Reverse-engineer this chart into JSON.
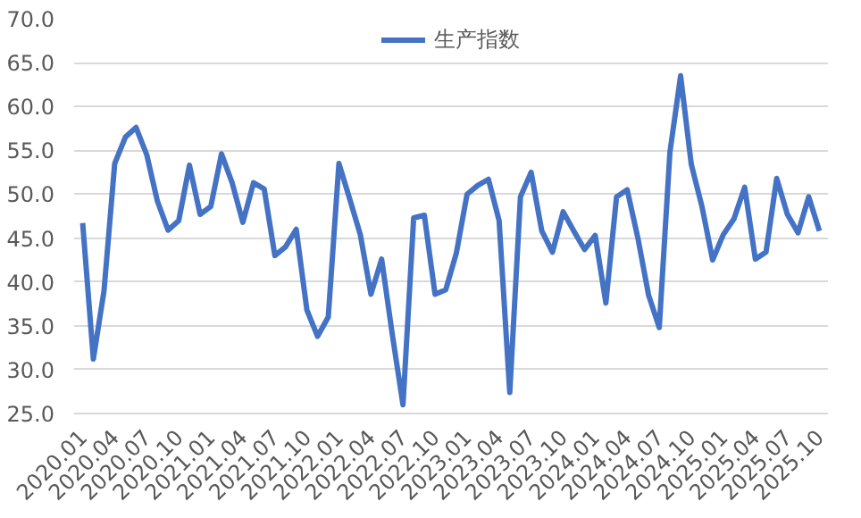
{
  "chart_data": {
    "type": "line",
    "categories": [
      "2020.01",
      null,
      null,
      "2020.04",
      null,
      null,
      "2020.07",
      null,
      null,
      "2020.10",
      null,
      null,
      "2021.01",
      null,
      null,
      "2021.04",
      null,
      null,
      "2021.07",
      null,
      null,
      "2021.10",
      null,
      null,
      "2022.01",
      null,
      null,
      "2022.04",
      null,
      null,
      "2022.07",
      null,
      null,
      "2022.10",
      null,
      null,
      "2023.01",
      null,
      null,
      "2023.04",
      null,
      null,
      "2023.07",
      null,
      null,
      "2023.10",
      null,
      null,
      "2024.01",
      null,
      null,
      "2024.04",
      null,
      null,
      "2024.07",
      null,
      null,
      "2024.10",
      null,
      null,
      "2025.01",
      null,
      null,
      "2025.04",
      null,
      null,
      "2025.07",
      null,
      null,
      "2025.10"
    ],
    "series": [
      {
        "name": "生产指数",
        "color": "#4472c4",
        "values": [
          46.7,
          31.2,
          39.0,
          53.5,
          56.5,
          57.6,
          54.5,
          49.2,
          45.9,
          47.0,
          53.3,
          47.7,
          48.6,
          54.6,
          51.3,
          46.8,
          51.3,
          50.6,
          43.0,
          44.0,
          46.0,
          36.8,
          33.8,
          36.0,
          53.5,
          49.5,
          45.4,
          38.6,
          42.6,
          34.0,
          26.0,
          47.3,
          47.6,
          38.6,
          39.1,
          43.3,
          50.0,
          51.0,
          51.7,
          47.0,
          27.4,
          49.7,
          52.5,
          45.8,
          43.4,
          48.0,
          45.8,
          43.7,
          45.3,
          37.6,
          49.7,
          50.5,
          45.0,
          38.5,
          34.8,
          54.8,
          63.5,
          53.4,
          48.6,
          42.5,
          45.4,
          47.2,
          50.8,
          42.6,
          43.4,
          51.8,
          47.7,
          45.6,
          49.7,
          45.8
        ]
      }
    ],
    "ylim": [
      25,
      70
    ],
    "yticks": [
      {
        "value": 25,
        "label": "25.0"
      },
      {
        "value": 30,
        "label": "30.0"
      },
      {
        "value": 35,
        "label": "35.0"
      },
      {
        "value": 40,
        "label": "40.0"
      },
      {
        "value": 45,
        "label": "45.0"
      },
      {
        "value": 50,
        "label": "50.0"
      },
      {
        "value": 55,
        "label": "55.0"
      },
      {
        "value": 60,
        "label": "60.0"
      },
      {
        "value": 65,
        "label": "65.0"
      },
      {
        "value": 70,
        "label": "70.0"
      }
    ],
    "grid": "y",
    "legend": "top",
    "marker": "none",
    "line_style": "solid"
  }
}
